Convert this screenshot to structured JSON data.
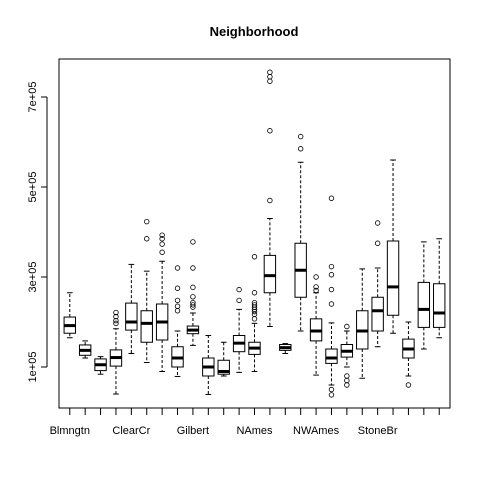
{
  "chart_data": {
    "type": "boxplot",
    "title": "Neighborhood",
    "xlabel": "",
    "ylabel": "",
    "ylim": [
      0,
      850000
    ],
    "y_ticks": [
      100000,
      300000,
      500000,
      700000
    ],
    "y_tick_labels": [
      "1e+05",
      "3e+05",
      "5e+05",
      "7e+05"
    ],
    "x_tick_labels_shown": [
      "Blmngtn",
      "ClearCr",
      "Gilbert",
      "NAmes",
      "NWAmes",
      "StoneBr"
    ],
    "x_tick_label_positions": [
      1,
      5,
      9,
      13,
      17,
      21
    ],
    "grid": false,
    "legend": "none",
    "boxes": [
      {
        "pos": 1,
        "whisker_low": 165000,
        "q1": 175000,
        "median": 192000,
        "q3": 211000,
        "whisker_high": 265000,
        "outliers": []
      },
      {
        "pos": 2,
        "whisker_low": 120000,
        "q1": 126000,
        "median": 137000,
        "q3": 149000,
        "whisker_high": 158000,
        "outliers": []
      },
      {
        "pos": 3,
        "whisker_low": 84000,
        "q1": 92000,
        "median": 105000,
        "q3": 118000,
        "whisker_high": 123000,
        "outliers": []
      },
      {
        "pos": 4,
        "whisker_low": 40000,
        "q1": 102000,
        "median": 121000,
        "q3": 138000,
        "whisker_high": 185000,
        "outliers": [
          197000,
          203000,
          212000,
          221000
        ]
      },
      {
        "pos": 5,
        "whisker_low": 130000,
        "q1": 182000,
        "median": 200000,
        "q3": 242000,
        "whisker_high": 328000,
        "outliers": []
      },
      {
        "pos": 6,
        "whisker_low": 110000,
        "q1": 155000,
        "median": 197000,
        "q3": 225000,
        "whisker_high": 313000,
        "outliers": [
          385000,
          423000
        ]
      },
      {
        "pos": 7,
        "whisker_low": 90000,
        "q1": 160000,
        "median": 200000,
        "q3": 240000,
        "whisker_high": 335000,
        "outliers": [
          355000,
          373000,
          385000,
          393000
        ]
      },
      {
        "pos": 8,
        "whisker_low": 79000,
        "q1": 100000,
        "median": 120000,
        "q3": 145000,
        "whisker_high": 180000,
        "outliers": [
          225000,
          235000,
          248000,
          275000,
          320000
        ]
      },
      {
        "pos": 9,
        "whisker_low": 148000,
        "q1": 174000,
        "median": 182000,
        "q3": 191000,
        "whisker_high": 220000,
        "outliers": [
          233000,
          238000,
          243000,
          256000,
          277000,
          320000,
          378000
        ]
      },
      {
        "pos": 10,
        "whisker_low": 39000,
        "q1": 80000,
        "median": 100000,
        "q3": 120000,
        "whisker_high": 170000,
        "outliers": []
      },
      {
        "pos": 11,
        "whisker_low": 80000,
        "q1": 84000,
        "median": 90000,
        "q3": 115000,
        "whisker_high": 155000,
        "outliers": []
      },
      {
        "pos": 12,
        "whisker_low": 88000,
        "q1": 134000,
        "median": 153000,
        "q3": 170000,
        "whisker_high": 228000,
        "outliers": [
          248000,
          272000
        ]
      },
      {
        "pos": 13,
        "whisker_low": 90000,
        "q1": 128000,
        "median": 142000,
        "q3": 155000,
        "whisker_high": 197000,
        "outliers": [
          207000,
          217000,
          223000,
          228000,
          233000,
          238000,
          243000,
          265000,
          345000
        ]
      },
      {
        "pos": 14,
        "whisker_low": 190000,
        "q1": 265000,
        "median": 303000,
        "q3": 348000,
        "whisker_high": 430000,
        "outliers": [
          470000,
          625000,
          735000,
          745000,
          755000
        ]
      },
      {
        "pos": 15,
        "whisker_low": 130000,
        "q1": 137000,
        "median": 143000,
        "q3": 150000,
        "whisker_high": 152000,
        "outliers": []
      },
      {
        "pos": 16,
        "whisker_low": 180000,
        "q1": 255000,
        "median": 315000,
        "q3": 375000,
        "whisker_high": 555000,
        "outliers": [
          585000,
          612000
        ]
      },
      {
        "pos": 17,
        "whisker_low": 82000,
        "q1": 158000,
        "median": 180000,
        "q3": 207000,
        "whisker_high": 265000,
        "outliers": [
          270000,
          278000,
          300000
        ]
      },
      {
        "pos": 18,
        "whisker_low": 60000,
        "q1": 108000,
        "median": 120000,
        "q3": 140000,
        "whisker_high": 198000,
        "outliers": [
          38000,
          50000,
          240000,
          272000,
          305000,
          323000,
          475000
        ]
      },
      {
        "pos": 19,
        "whisker_low": 100000,
        "q1": 122000,
        "median": 135000,
        "q3": 150000,
        "whisker_high": 180000,
        "outliers": [
          60000,
          70000,
          80000,
          190000
        ]
      },
      {
        "pos": 20,
        "whisker_low": 75000,
        "q1": 140000,
        "median": 180000,
        "q3": 225000,
        "whisker_high": 318000,
        "outliers": []
      },
      {
        "pos": 21,
        "whisker_low": 145000,
        "q1": 180000,
        "median": 225000,
        "q3": 255000,
        "whisker_high": 320000,
        "outliers": [
          375000,
          420000
        ]
      },
      {
        "pos": 22,
        "whisker_low": 175000,
        "q1": 215000,
        "median": 278000,
        "q3": 380000,
        "whisker_high": 560000,
        "outliers": []
      },
      {
        "pos": 23,
        "whisker_low": 80000,
        "q1": 120000,
        "median": 140000,
        "q3": 162000,
        "whisker_high": 200000,
        "outliers": [
          60000
        ]
      },
      {
        "pos": 24,
        "whisker_low": 140000,
        "q1": 188000,
        "median": 228000,
        "q3": 288000,
        "whisker_high": 378000,
        "outliers": []
      },
      {
        "pos": 25,
        "whisker_low": 165000,
        "q1": 188000,
        "median": 220000,
        "q3": 285000,
        "whisker_high": 385000,
        "outliers": []
      }
    ]
  }
}
